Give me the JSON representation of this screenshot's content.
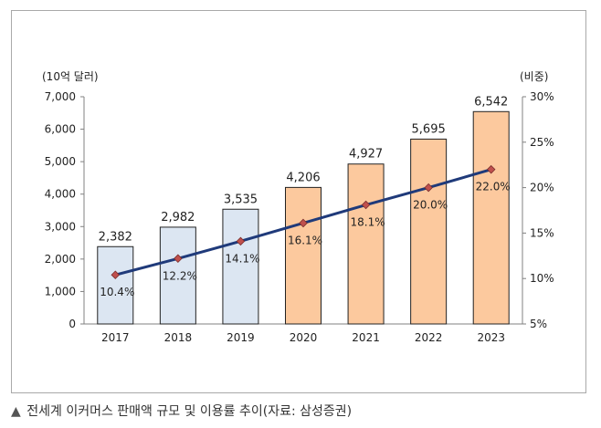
{
  "chart_data": {
    "type": "bar+line",
    "y_left_label": "(10억 달러)",
    "y_right_label": "(비중)",
    "categories": [
      "2017",
      "2018",
      "2019",
      "2020",
      "2021",
      "2022",
      "2023"
    ],
    "bar_values": [
      2382,
      2982,
      3535,
      4206,
      4927,
      5695,
      6542
    ],
    "bar_value_labels": [
      "2,382",
      "2,982",
      "3,535",
      "4,206",
      "4,927",
      "5,695",
      "6,542"
    ],
    "bar_colors": [
      "#dce6f2",
      "#dce6f2",
      "#dce6f2",
      "#fcc99e",
      "#fcc99e",
      "#fcc99e",
      "#fcc99e"
    ],
    "line_values": [
      10.4,
      12.2,
      14.1,
      16.1,
      18.1,
      20.0,
      22.0
    ],
    "line_value_labels": [
      "10.4%",
      "12.2%",
      "14.1%",
      "16.1%",
      "18.1%",
      "20.0%",
      "22.0%"
    ],
    "line_color": "#1f3a7a",
    "marker_color": "#c0504d",
    "y_left_lim": [
      0,
      7000
    ],
    "y_left_ticks": [
      "0",
      "1,000",
      "2,000",
      "3,000",
      "4,000",
      "5,000",
      "6,000",
      "7,000"
    ],
    "y_right_lim": [
      5,
      30
    ],
    "y_right_ticks": [
      "5%",
      "10%",
      "15%",
      "20%",
      "25%",
      "30%"
    ],
    "grid": false,
    "legend": "none"
  },
  "caption": {
    "icon": "triangle-up-icon",
    "text": "전세계 이커머스 판매액 규모 및 이용률 추이(자료: 삼성증권)"
  }
}
